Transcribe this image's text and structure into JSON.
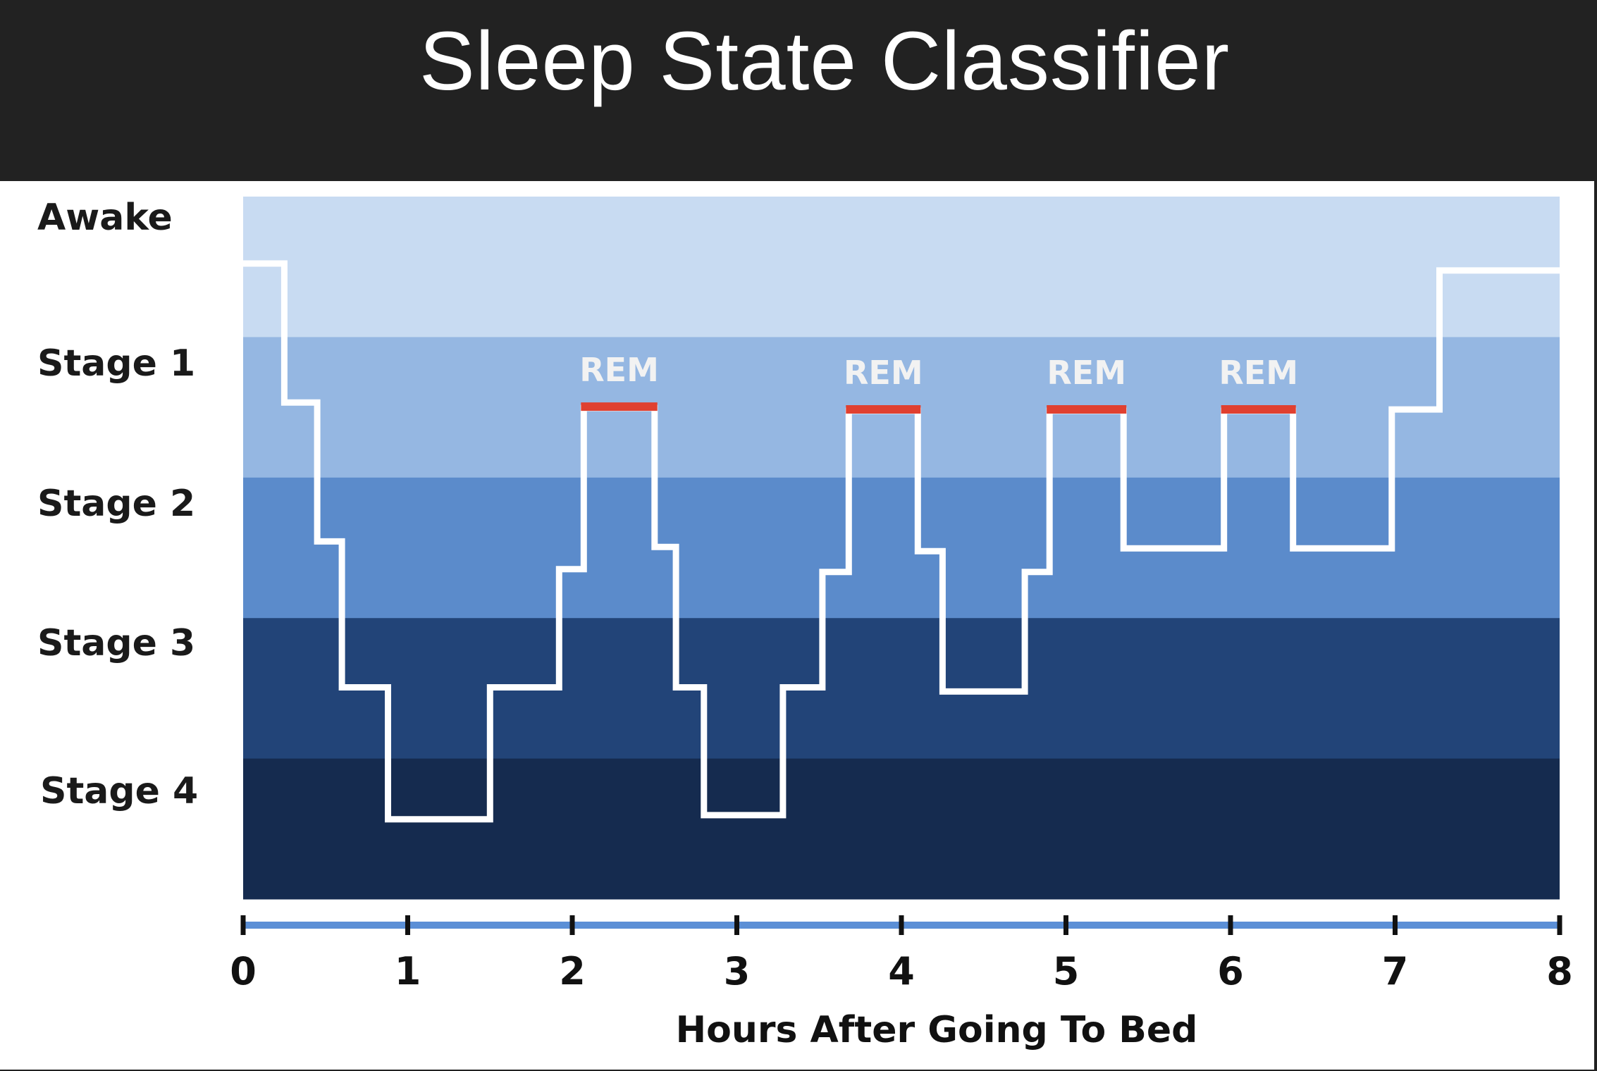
{
  "app": {
    "title": "Sleep State Classifier"
  },
  "colors": {
    "header_bg": "#222222",
    "panel_bg": "#ffffff",
    "band_awake": "#c8dbf2",
    "band_stage1": "#95b7e2",
    "band_stage2": "#5b8bcb",
    "band_stage3": "#224478",
    "band_stage4": "#152b4f",
    "hypnogram_line": "#ffffff",
    "rem_marker": "#e04030",
    "axis_line": "#5b8fd6",
    "tick_mark": "#111111"
  },
  "chart_data": {
    "type": "line",
    "xlabel": "Hours After Going To Bed",
    "xlim": [
      0,
      8
    ],
    "x_ticks": [
      "0",
      "1",
      "2",
      "3",
      "4",
      "5",
      "6",
      "7",
      "8"
    ],
    "y_categories": [
      "Awake",
      "Stage 1",
      "Stage 2",
      "Stage 3",
      "Stage 4"
    ],
    "band_levels": [
      {
        "name": "Awake",
        "from": -0.5,
        "to": 0.5
      },
      {
        "name": "Stage 1",
        "from": 0.5,
        "to": 1.5
      },
      {
        "name": "Stage 2",
        "from": 1.5,
        "to": 2.5
      },
      {
        "name": "Stage 3",
        "from": 2.5,
        "to": 3.5
      },
      {
        "name": "Stage 4",
        "from": 3.5,
        "to": 4.5
      }
    ],
    "hypnogram": [
      {
        "x": 0.0,
        "y": 0.0
      },
      {
        "x": 0.25,
        "y": 0.0
      },
      {
        "x": 0.25,
        "y": 1.0
      },
      {
        "x": 0.45,
        "y": 1.0
      },
      {
        "x": 0.45,
        "y": 2.0
      },
      {
        "x": 0.6,
        "y": 2.0
      },
      {
        "x": 0.6,
        "y": 3.05
      },
      {
        "x": 0.88,
        "y": 3.05
      },
      {
        "x": 0.88,
        "y": 4.0
      },
      {
        "x": 1.5,
        "y": 4.0
      },
      {
        "x": 1.5,
        "y": 3.05
      },
      {
        "x": 1.92,
        "y": 3.05
      },
      {
        "x": 1.92,
        "y": 2.2
      },
      {
        "x": 2.07,
        "y": 2.2
      },
      {
        "x": 2.07,
        "y": 1.04
      },
      {
        "x": 2.5,
        "y": 1.04
      },
      {
        "x": 2.5,
        "y": 2.04
      },
      {
        "x": 2.63,
        "y": 2.04
      },
      {
        "x": 2.63,
        "y": 3.05
      },
      {
        "x": 2.8,
        "y": 3.05
      },
      {
        "x": 2.8,
        "y": 3.97
      },
      {
        "x": 3.28,
        "y": 3.97
      },
      {
        "x": 3.28,
        "y": 3.05
      },
      {
        "x": 3.52,
        "y": 3.05
      },
      {
        "x": 3.52,
        "y": 2.22
      },
      {
        "x": 3.68,
        "y": 2.22
      },
      {
        "x": 3.68,
        "y": 1.06
      },
      {
        "x": 4.1,
        "y": 1.06
      },
      {
        "x": 4.1,
        "y": 2.07
      },
      {
        "x": 4.25,
        "y": 2.07
      },
      {
        "x": 4.25,
        "y": 3.08
      },
      {
        "x": 4.75,
        "y": 3.08
      },
      {
        "x": 4.75,
        "y": 2.22
      },
      {
        "x": 4.9,
        "y": 2.22
      },
      {
        "x": 4.9,
        "y": 1.06
      },
      {
        "x": 5.35,
        "y": 1.06
      },
      {
        "x": 5.35,
        "y": 2.05
      },
      {
        "x": 5.96,
        "y": 2.05
      },
      {
        "x": 5.96,
        "y": 1.06
      },
      {
        "x": 6.38,
        "y": 1.06
      },
      {
        "x": 6.38,
        "y": 2.05
      },
      {
        "x": 6.98,
        "y": 2.05
      },
      {
        "x": 6.98,
        "y": 1.05
      },
      {
        "x": 7.27,
        "y": 1.05
      },
      {
        "x": 7.27,
        "y": 0.05
      },
      {
        "x": 8.0,
        "y": 0.05
      }
    ],
    "rem_periods": [
      {
        "label": "REM",
        "x_start": 2.07,
        "x_end": 2.5,
        "y": 1.04
      },
      {
        "label": "REM",
        "x_start": 3.68,
        "x_end": 4.1,
        "y": 1.06
      },
      {
        "label": "REM",
        "x_start": 4.9,
        "x_end": 5.35,
        "y": 1.06
      },
      {
        "label": "REM",
        "x_start": 5.96,
        "x_end": 6.38,
        "y": 1.06
      }
    ],
    "grid": false,
    "legend": "none"
  }
}
